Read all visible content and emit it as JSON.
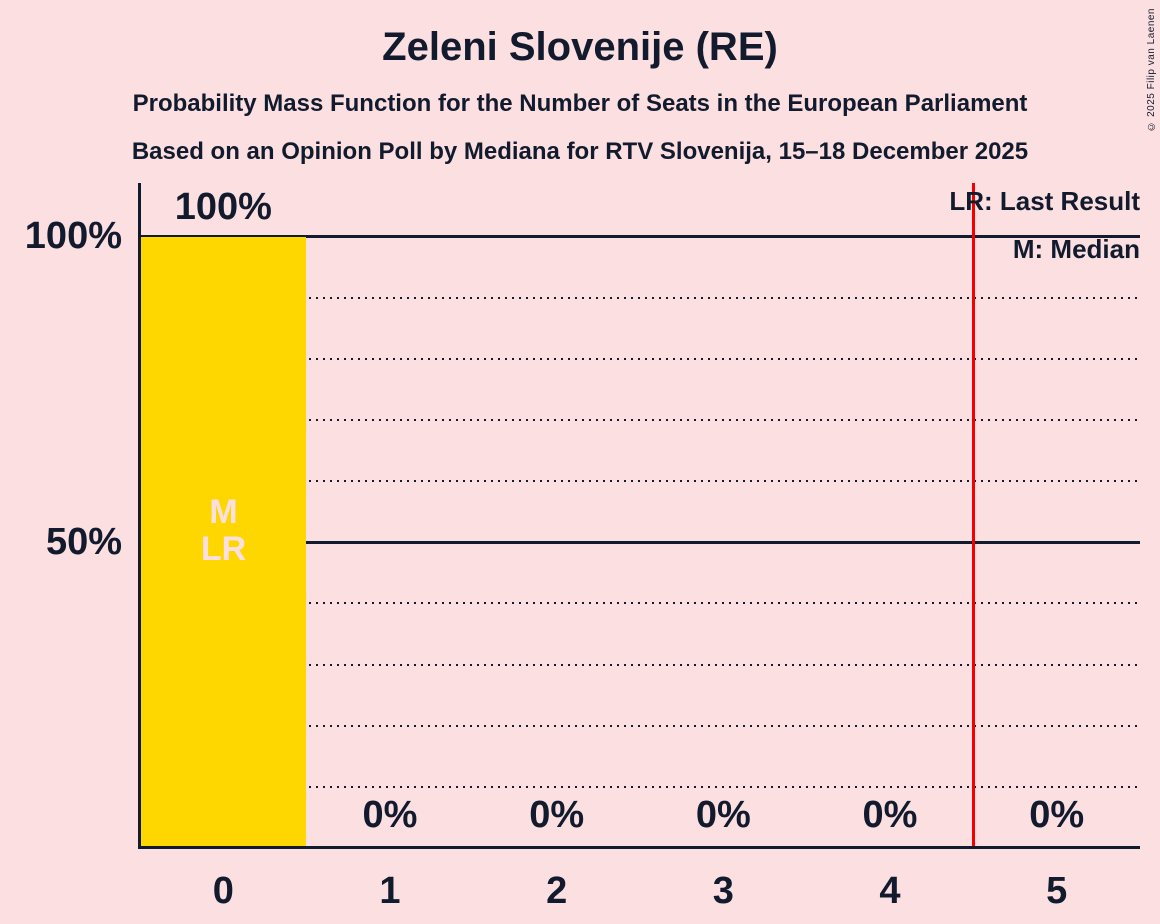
{
  "title": "Zeleni Slovenije (RE)",
  "subtitle_line1": "Probability Mass Function for the Number of Seats in the European Parliament",
  "subtitle_line2": "Based on an Opinion Poll by Mediana for RTV Slovenija, 15–18 December 2025",
  "legend": {
    "lr_label": "LR: Last Result",
    "m_label": "M: Median"
  },
  "copyright": "© 2025 Filip van Laenen",
  "colors": {
    "background": "#fcdfe0",
    "bar": "#ffd700",
    "ink": "#121b2e",
    "majority_line": "#f40000",
    "in_bar_text": "#fcdfe0"
  },
  "chart_data": {
    "type": "bar",
    "title": "Zeleni Slovenije (RE)",
    "categories": [
      "0",
      "1",
      "2",
      "3",
      "4",
      "5"
    ],
    "values": [
      100,
      0,
      0,
      0,
      0,
      0
    ],
    "bar_value_labels": [
      "100%",
      "0%",
      "0%",
      "0%",
      "0%",
      "0%"
    ],
    "y_ticks": [
      "100%",
      "50%"
    ],
    "ylim": [
      0,
      100
    ],
    "gridlines_solid_pct": [
      50,
      100
    ],
    "gridlines_dotted_pct": [
      10,
      20,
      30,
      40,
      60,
      70,
      80,
      90
    ],
    "median": 0,
    "last_result": 0,
    "red_line_at_seats": 4.5,
    "in_bar_annotations": [
      "M",
      "LR"
    ],
    "legend_position": "top-right",
    "grid": "horizontal"
  }
}
